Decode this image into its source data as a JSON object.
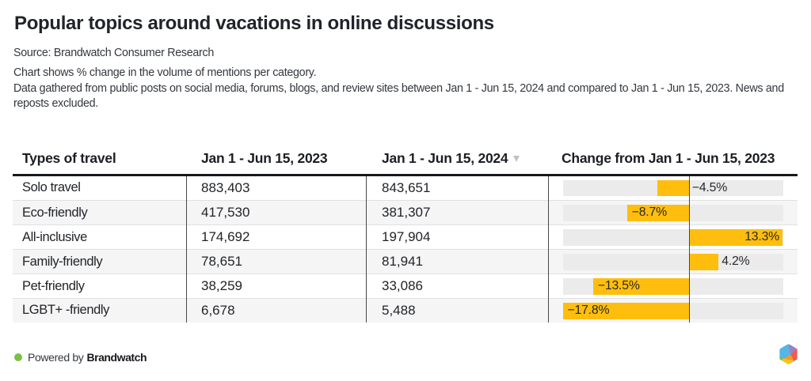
{
  "header": {
    "title": "Popular topics around vacations in online discussions",
    "source_line": "Source: Brandwatch Consumer Research",
    "description_lines": [
      "Chart shows % change in the volume of mentions per category.",
      "Data gathered from public posts on social media, forums, blogs, and review sites between Jan 1 - Jun 15, 2024 and compared to Jan 1 - Jun 15, 2023. News and reposts excluded."
    ]
  },
  "table": {
    "columns": [
      {
        "id": "type",
        "label": "Types of travel"
      },
      {
        "id": "y2023",
        "label": "Jan 1 - Jun 15, 2023"
      },
      {
        "id": "y2024",
        "label": "Jan 1 - Jun 15, 2024",
        "sort": "desc"
      },
      {
        "id": "change",
        "label": "Change from Jan 1 - Jun 15, 2023"
      }
    ],
    "rows": [
      {
        "type": "Solo travel",
        "y2023": "883,403",
        "y2024": "843,651",
        "change_pct": -4.5,
        "change_label": "−4.5%"
      },
      {
        "type": "Eco-friendly",
        "y2023": "417,530",
        "y2024": "381,307",
        "change_pct": -8.7,
        "change_label": "−8.7%"
      },
      {
        "type": "All-inclusive",
        "y2023": "174,692",
        "y2024": "197,904",
        "change_pct": 13.3,
        "change_label": "13.3%"
      },
      {
        "type": "Family-friendly",
        "y2023": "78,651",
        "y2024": "81,941",
        "change_pct": 4.2,
        "change_label": "4.2%"
      },
      {
        "type": "Pet-friendly",
        "y2023": "38,259",
        "y2024": "33,086",
        "change_pct": -13.5,
        "change_label": "−13.5%"
      },
      {
        "type": "LGBT+ -friendly",
        "y2023": "6,678",
        "y2024": "5,488",
        "change_pct": -17.8,
        "change_label": "−17.8%"
      }
    ]
  },
  "chart_data": {
    "type": "bar",
    "orientation": "horizontal",
    "title": "Popular topics around vacations in online discussions",
    "categories": [
      "Solo travel",
      "Eco-friendly",
      "All-inclusive",
      "Family-friendly",
      "Pet-friendly",
      "LGBT+ -friendly"
    ],
    "series": [
      {
        "name": "Jan 1 - Jun 15, 2023 mentions",
        "values": [
          883403,
          417530,
          174692,
          78651,
          38259,
          6678
        ]
      },
      {
        "name": "Jan 1 - Jun 15, 2024 mentions",
        "values": [
          843651,
          381307,
          197904,
          81941,
          33086,
          5488
        ]
      },
      {
        "name": "Change from Jan 1 - Jun 15, 2023 (%)",
        "values": [
          -4.5,
          -8.7,
          13.3,
          4.2,
          -13.5,
          -17.8
        ]
      }
    ],
    "xlim": [
      -17.8,
      13.3
    ],
    "xlabel": "% change in volume of mentions",
    "ylabel": "Types of travel",
    "grid": false,
    "legend": "none",
    "bar_color": "#FFBE0D",
    "track_color": "#EBEBEB"
  },
  "footer": {
    "powered_by": "Powered by",
    "brand": "Brandwatch",
    "dot_color": "#7AC143",
    "logo_colors": {
      "blue": "#55B6E4",
      "purple": "#9D80C4",
      "red": "#F4594D",
      "orange": "#F89B1C",
      "yellow": "#FFC20A",
      "green": "#7DC142"
    }
  }
}
